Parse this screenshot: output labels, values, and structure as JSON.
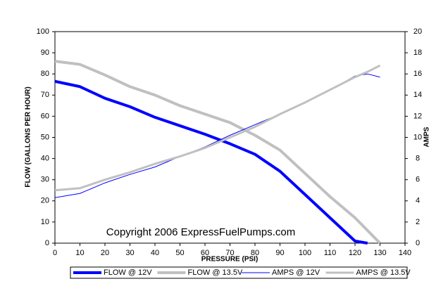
{
  "chart_data": {
    "type": "line",
    "x": [
      0,
      10,
      20,
      30,
      40,
      50,
      60,
      70,
      80,
      90,
      100,
      110,
      120,
      125,
      130
    ],
    "series": [
      {
        "name": "FLOW @ 12V",
        "color": "#0000ff",
        "line_width": 4,
        "values": [
          76.5,
          74,
          68.5,
          64.5,
          59.5,
          55.5,
          51.5,
          47,
          42,
          34,
          23,
          12,
          1,
          0,
          null
        ]
      },
      {
        "name": "FLOW @ 13.5V",
        "color": "#c0c0c0",
        "line_width": 4,
        "values": [
          86,
          84.5,
          79.5,
          74,
          70,
          65,
          61,
          57,
          51,
          44,
          33,
          22,
          12,
          6,
          0
        ]
      },
      {
        "name": "AMPS @ 12V",
        "color": "#0000ff",
        "line_width": 1,
        "axis": "y2",
        "values": [
          4.3,
          4.7,
          5.7,
          6.5,
          7.2,
          8.2,
          9.1,
          10.2,
          11.2,
          12.2,
          13.3,
          14.5,
          15.8,
          16,
          15.7
        ]
      },
      {
        "name": "AMPS @ 13.5V",
        "color": "#c0c0c0",
        "line_width": 3,
        "axis": "y2",
        "values": [
          5,
          5.2,
          6,
          6.7,
          7.5,
          8.2,
          9,
          10,
          11,
          12.2,
          13.3,
          14.5,
          15.7,
          16.2,
          16.8
        ]
      }
    ],
    "xlabel": "PRESSURE (PSI)",
    "ylabel": "FLOW (GALLONS PER HOUR)",
    "y2label": "AMPS",
    "annotation": "Copyright 2006 ExpressFuelPumps.com",
    "xlim": [
      0,
      140
    ],
    "xticks": [
      0,
      10,
      20,
      30,
      40,
      50,
      60,
      70,
      80,
      90,
      100,
      110,
      120,
      130,
      140
    ],
    "ylim": [
      0,
      100
    ],
    "yticks": [
      0,
      10,
      20,
      30,
      40,
      50,
      60,
      70,
      80,
      90,
      100
    ],
    "y2lim": [
      0,
      20
    ],
    "y2ticks": [
      0,
      2,
      4,
      6,
      8,
      10,
      12,
      14,
      16,
      18,
      20
    ],
    "grid": false,
    "legend": "bottom"
  }
}
